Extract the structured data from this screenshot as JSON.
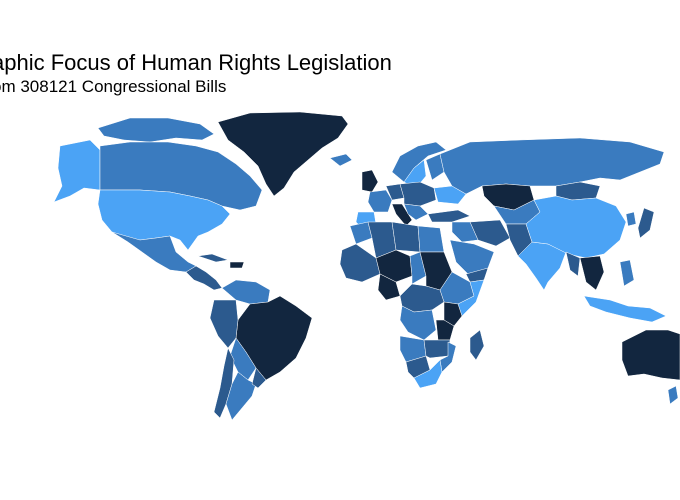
{
  "map": {
    "title": "aphic Focus of Human Rights Legislation",
    "subtitle": "om 308121 Congressional Bills",
    "projection": "equirectangular",
    "legend": "none",
    "color_scale": {
      "type": "sequential-blue",
      "low": "#4ba3f5",
      "mid": "#3a7bbf",
      "midhigh": "#2c5a8e",
      "high": "#12263f"
    }
  }
}
